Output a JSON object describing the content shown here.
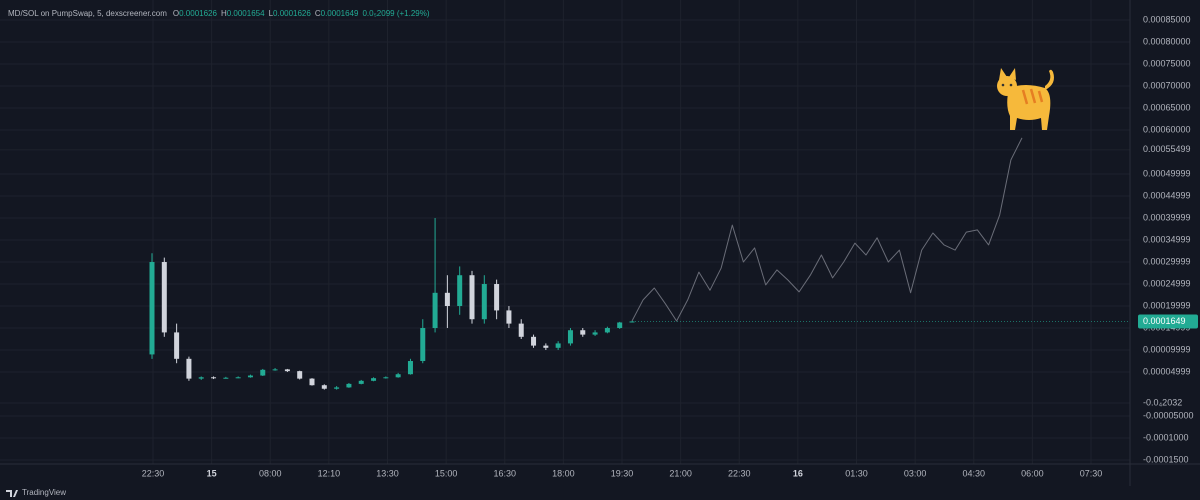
{
  "chart_data": {
    "type": "candlestick",
    "title": "MD/SOL on PumpSwap, 5, dexscreener.com",
    "ohlc": [
      {
        "key": "O",
        "value": 0.0001626
      },
      {
        "key": "H",
        "value": 0.0001654
      },
      {
        "key": "L",
        "value": 0.0001626
      },
      {
        "key": "C",
        "value": 0.0001649
      }
    ],
    "change": "0.0₅2099 (+1.29%)",
    "candles": {
      "open": [
        9e-05,
        0.0003,
        0.00014,
        8e-05,
        3.5e-05,
        3.8e-05,
        3.6e-05,
        3.7e-05,
        3.8e-05,
        4.2e-05,
        5.5e-05,
        5.6e-05,
        5.2e-05,
        3.5e-05,
        2e-05,
        1.2e-05,
        1.5e-05,
        2.3e-05,
        3e-05,
        3.6e-05,
        3.8e-05,
        4.5e-05,
        7.5e-05,
        0.00015,
        0.00023,
        0.0002,
        0.00027,
        0.00017,
        0.00025,
        0.00019,
        0.00016,
        0.00013,
        0.00011,
        0.000105,
        0.000115,
        0.000145,
        0.000135,
        0.00014,
        0.00015,
        0.0001626
      ],
      "close": [
        0.0003,
        0.00014,
        8e-05,
        3.5e-05,
        3.8e-05,
        3.6e-05,
        3.7e-05,
        3.8e-05,
        4.2e-05,
        5.5e-05,
        5.6e-05,
        5.2e-05,
        3.5e-05,
        2e-05,
        1.2e-05,
        1.5e-05,
        2.3e-05,
        3e-05,
        3.6e-05,
        3.8e-05,
        4.5e-05,
        7.5e-05,
        0.00015,
        0.00023,
        0.0002,
        0.00027,
        0.00017,
        0.00025,
        0.00019,
        0.00016,
        0.00013,
        0.00011,
        0.000105,
        0.000115,
        0.000145,
        0.000135,
        0.00014,
        0.00015,
        0.0001626,
        0.0001649
      ],
      "high": [
        0.00032,
        0.00031,
        0.00016,
        8.5e-05,
        4e-05,
        4e-05,
        3.9e-05,
        4e-05,
        4.4e-05,
        5.7e-05,
        5.9e-05,
        5.7e-05,
        5.3e-05,
        3.6e-05,
        2.2e-05,
        1.8e-05,
        2.5e-05,
        3.2e-05,
        3.8e-05,
        4e-05,
        4.8e-05,
        8e-05,
        0.00017,
        0.0004,
        0.00027,
        0.00029,
        0.00028,
        0.00027,
        0.00026,
        0.0002,
        0.00017,
        0.000135,
        0.000115,
        0.00012,
        0.00015,
        0.00015,
        0.000145,
        0.000153,
        0.000164,
        0.0001654
      ],
      "low": [
        8e-05,
        0.00013,
        7e-05,
        3e-05,
        3.2e-05,
        3.4e-05,
        3.5e-05,
        3.6e-05,
        3.7e-05,
        4.1e-05,
        5.3e-05,
        5e-05,
        3.3e-05,
        1.9e-05,
        1e-05,
        1e-05,
        1.4e-05,
        2.2e-05,
        2.9e-05,
        3.5e-05,
        3.7e-05,
        4.4e-05,
        7e-05,
        0.00014,
        0.00015,
        0.00018,
        0.00016,
        0.00016,
        0.00017,
        0.00015,
        0.000125,
        0.000105,
        0.0001,
        0.0001,
        0.00011,
        0.00013,
        0.000132,
        0.000138,
        0.000148,
        0.0001626
      ]
    },
    "up_color": "#22ab94",
    "down_color": "#d1d4dc",
    "line": {
      "color": "#6a6d78",
      "values": [
        0.000166,
        0.000214,
        0.000241,
        0.000205,
        0.000166,
        0.000214,
        0.000277,
        0.000236,
        0.000286,
        0.000384,
        0.0003,
        0.000332,
        0.000248,
        0.000282,
        0.000259,
        0.000232,
        0.00027,
        0.000316,
        0.000264,
        0.0003,
        0.000343,
        0.000316,
        0.000355,
        0.0003,
        0.000327,
        0.00023,
        0.000327,
        0.000366,
        0.000339,
        0.000327,
        0.000368,
        0.000373,
        0.000339,
        0.000407,
        0.000532,
        0.000582
      ]
    },
    "last_price": 0.0001649,
    "ylim": [
      -0.0001727,
      0.0008955
    ],
    "yticks": [
      {
        "value": 0.00085,
        "label": "0.00085000"
      },
      {
        "value": 0.0008,
        "label": "0.00080000"
      },
      {
        "value": 0.00075,
        "label": "0.00075000"
      },
      {
        "value": 0.0007,
        "label": "0.00070000"
      },
      {
        "value": 0.00065,
        "label": "0.00065000"
      },
      {
        "value": 0.0006,
        "label": "0.00060000"
      },
      {
        "value": 0.00055499,
        "label": "0.00055499"
      },
      {
        "value": 0.00049999,
        "label": "0.00049999"
      },
      {
        "value": 0.00044999,
        "label": "0.00044999"
      },
      {
        "value": 0.00039999,
        "label": "0.00039999"
      },
      {
        "value": 0.00034999,
        "label": "0.00034999"
      },
      {
        "value": 0.00029999,
        "label": "0.00029999"
      },
      {
        "value": 0.00024999,
        "label": "0.00024999"
      },
      {
        "value": 0.00019999,
        "label": "0.00019999"
      },
      {
        "value": 0.00014999,
        "label": "0.00014999"
      },
      {
        "value": 9.999e-05,
        "label": "0.00009999"
      },
      {
        "value": 4.999e-05,
        "label": "0.00004999"
      },
      {
        "value": -2.032e-05,
        "label": "-0.0₄2032"
      },
      {
        "value": -5e-05,
        "label": "-0.00005000"
      },
      {
        "value": -0.0001,
        "label": "-0.0001000"
      },
      {
        "value": -0.00015,
        "label": "-0.0001500"
      }
    ],
    "categories": [
      "22:30",
      "15",
      "08:00",
      "12:10",
      "13:30",
      "15:00",
      "16:30",
      "18:00",
      "19:30",
      "21:00",
      "22:30",
      "16",
      "01:30",
      "03:00",
      "04:30",
      "06:00",
      "07:30"
    ],
    "grid": true,
    "watermark": "TradingView"
  }
}
